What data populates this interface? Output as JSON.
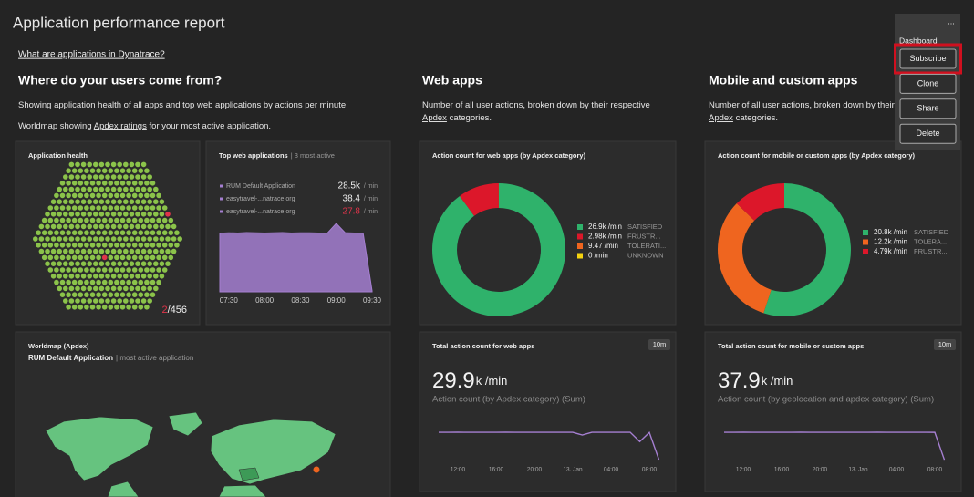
{
  "header": {
    "title": "Application performance report",
    "link": "What are applications in Dynatrace?"
  },
  "menu": {
    "more": "...",
    "label": "Dashboard",
    "items": [
      "Subscribe",
      "Clone",
      "Share",
      "Delete"
    ],
    "highlighted": 0
  },
  "sections": [
    {
      "heading": "Where do your users come from?",
      "lines": [
        [
          "Showing ",
          {
            "link": "application health"
          },
          " of all apps and top web applications by actions per minute."
        ],
        [
          "Worldmap showing ",
          {
            "link": "Apdex ratings"
          },
          " for your most active application."
        ]
      ]
    },
    {
      "heading": "Web apps",
      "lines": [
        [
          "Number of all user actions, broken down by their respective"
        ],
        [
          {
            "link": "Apdex"
          },
          " categories."
        ]
      ]
    },
    {
      "heading": "Mobile and custom apps",
      "lines": [
        [
          "Number of all user actions, broken down by their respective"
        ],
        [
          {
            "link": "Apdex"
          },
          " categories."
        ]
      ]
    }
  ],
  "app_health": {
    "title": "Application health",
    "unhealthy": 2,
    "total": 456,
    "total_label": "/456",
    "healthy_color": "#8bc34a",
    "unhealthy_color": "#e0344a"
  },
  "top_web_apps": {
    "title": "Top web applications",
    "subtitle": "| 3 most active",
    "unit": "/ min",
    "rows": [
      {
        "name": "RUM Default Application",
        "value": 28500,
        "value_label": "28.5k"
      },
      {
        "name": "easytravel-...natrace.org",
        "value": 38.4
      },
      {
        "name": "easytravel-...natrace.org",
        "value": 27.8,
        "value_color": "#e0344a"
      }
    ],
    "chart": {
      "type": "area",
      "color": "#a57fd1",
      "categories": [
        null,
        "07:30",
        null,
        null,
        null,
        "08:00",
        null,
        null,
        null,
        "08:30",
        null,
        null,
        null,
        "09:00",
        null,
        null,
        null,
        "09:30"
      ],
      "values": [
        28300,
        28500,
        28400,
        28600,
        28500,
        28400,
        28500,
        28600,
        28400,
        28500,
        28500,
        28400,
        28300,
        33000,
        28500,
        28400,
        28300,
        500
      ]
    }
  },
  "worldmap": {
    "title": "Worldmap (Apdex)",
    "app": "RUM Default Application",
    "subtitle": "| most active application"
  },
  "web_donut": {
    "type": "pie",
    "title": "Action count for web apps (by Apdex category)",
    "series": [
      {
        "name": "SATISFIED",
        "value": 26900,
        "value_label": "26.9k /min",
        "color": "#2fb26b"
      },
      {
        "name": "FRUSTR...",
        "value": 2980,
        "value_label": "2.98k /min",
        "color": "#dc172a"
      },
      {
        "name": "TOLERATI...",
        "value": 9.47,
        "value_label": "9.47 /min",
        "color": "#ef651f"
      },
      {
        "name": "UNKNOWN",
        "value": 0,
        "value_label": "0 /min",
        "color": "#f5d30f"
      }
    ]
  },
  "mobile_donut": {
    "type": "pie",
    "title": "Action count for mobile or custom apps (by Apdex category)",
    "series": [
      {
        "name": "SATISFIED",
        "value": 20800,
        "value_label": "20.8k /min",
        "color": "#2fb26b"
      },
      {
        "name": "TOLERA...",
        "value": 12200,
        "value_label": "12.2k /min",
        "color": "#ef651f"
      },
      {
        "name": "FRUSTR...",
        "value": 4790,
        "value_label": "4.79k /min",
        "color": "#dc172a"
      }
    ]
  },
  "web_total": {
    "type": "line",
    "title": "Total action count for web apps",
    "badge": "10m",
    "value": 29.9,
    "unit": "k /min",
    "subtitle": "Action count (by Apdex category) (Sum)",
    "color": "#a57fd1",
    "categories": [
      null,
      null,
      "12:00",
      null,
      null,
      null,
      "16:00",
      null,
      null,
      null,
      "20:00",
      null,
      null,
      null,
      "13. Jan",
      null,
      null,
      null,
      "04:00",
      null,
      null,
      null,
      "08:00",
      null
    ],
    "values": [
      29900,
      29900,
      29950,
      29900,
      29850,
      29900,
      29900,
      29950,
      29900,
      29900,
      29900,
      29850,
      29900,
      29900,
      29900,
      27000,
      29900,
      29850,
      29900,
      29900,
      29900,
      20000,
      29700,
      1000
    ]
  },
  "mobile_total": {
    "type": "line",
    "title": "Total action count for mobile or custom apps",
    "badge": "10m",
    "value": 37.9,
    "unit": "k /min",
    "subtitle": "Action count (by geolocation and apdex category) (Sum)",
    "color": "#a57fd1",
    "categories": [
      null,
      null,
      "12:00",
      null,
      null,
      null,
      "16:00",
      null,
      null,
      null,
      "20:00",
      null,
      null,
      null,
      "13. Jan",
      null,
      null,
      null,
      "04:00",
      null,
      null,
      null,
      "08:00",
      null
    ],
    "values": [
      37900,
      37900,
      37950,
      37900,
      37900,
      37850,
      37900,
      37900,
      37950,
      37900,
      37900,
      37900,
      37850,
      37900,
      37900,
      37900,
      37950,
      37900,
      37900,
      37850,
      37900,
      37900,
      37800,
      1000
    ]
  }
}
